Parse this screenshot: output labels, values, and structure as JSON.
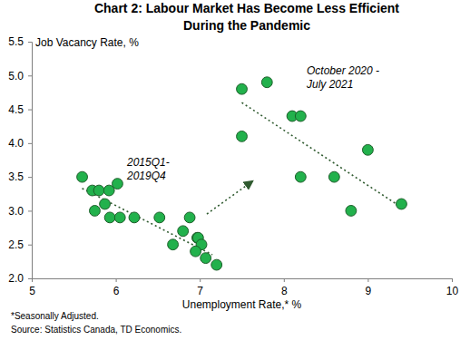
{
  "chart_data": {
    "type": "scatter",
    "title": [
      "Chart 2: Labour Market Has Become Less Efficient",
      "During the Pandemic"
    ],
    "y_label": "Job Vacancy Rate, %",
    "x_label": "Unemployment Rate,* %",
    "annotations": [
      [
        "2015Q1-",
        "2019Q4"
      ],
      [
        "October 2020 -",
        "July 2021"
      ]
    ],
    "notes": [
      "*Seasonally Adjusted.",
      "Source: Statistics Canada, TD Economics."
    ],
    "xlim": [
      5,
      10
    ],
    "ylim": [
      2,
      5.5
    ],
    "xticks": [
      5,
      6,
      7,
      8,
      9,
      10
    ],
    "yticks": [
      {
        "value": 2,
        "label": "2.0"
      },
      2.5,
      {
        "value": 3,
        "label": "3.0"
      },
      3.5,
      {
        "value": 4,
        "label": "4.0"
      },
      4.5,
      {
        "value": 5,
        "label": "5.0"
      },
      5.5
    ],
    "grid": false,
    "series": [
      {
        "type": "line",
        "line_style": "dotted",
        "color": "#2f5a2f",
        "x": [
          5.6,
          7.15
        ],
        "values": [
          3.33,
          2.35
        ]
      },
      {
        "type": "line",
        "line_style": "dotted",
        "color": "#2f5a2f",
        "x": [
          7.5,
          9.4
        ],
        "values": [
          4.6,
          3.05
        ]
      },
      {
        "type": "scatter",
        "marker": "circle",
        "color": "#22b14c",
        "x": [
          5.6,
          5.72,
          5.8,
          5.92,
          6.02,
          5.75,
          5.87,
          5.93,
          6.05,
          6.22,
          6.52,
          6.88,
          6.68,
          6.8,
          6.97,
          6.98,
          7.02,
          6.95,
          7.07,
          7.2
        ],
        "values": [
          3.5,
          3.3,
          3.3,
          3.3,
          3.4,
          3.0,
          3.1,
          2.9,
          2.9,
          2.9,
          2.9,
          2.9,
          2.5,
          2.7,
          2.6,
          2.6,
          2.5,
          2.4,
          2.3,
          2.2
        ]
      },
      {
        "type": "scatter",
        "marker": "circle",
        "color": "#22b14c",
        "x": [
          7.5,
          7.5,
          7.8,
          8.1,
          8.2,
          8.2,
          8.6,
          8.8,
          9.0,
          9.4
        ],
        "values": [
          4.8,
          4.1,
          4.9,
          4.4,
          4.4,
          3.5,
          3.5,
          3.0,
          3.9,
          3.1
        ]
      }
    ]
  }
}
